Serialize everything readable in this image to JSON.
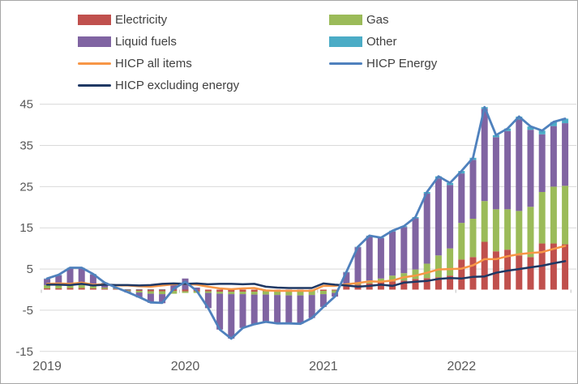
{
  "chart_data": {
    "type": "bar",
    "subtype": "stacked-bars-with-lines",
    "title": "",
    "xlabel": "",
    "ylabel": "",
    "grid": true,
    "legend_position": "top",
    "ylim": [
      -15,
      47
    ],
    "y_ticks": [
      45,
      35,
      25,
      15,
      5,
      -5,
      -15
    ],
    "year_labels": [
      "2019",
      "2020",
      "2021",
      "2022"
    ],
    "year_start_indices": [
      0,
      12,
      24,
      36
    ],
    "months": [
      "2019-01",
      "2019-02",
      "2019-03",
      "2019-04",
      "2019-05",
      "2019-06",
      "2019-07",
      "2019-08",
      "2019-09",
      "2019-10",
      "2019-11",
      "2019-12",
      "2020-01",
      "2020-02",
      "2020-03",
      "2020-04",
      "2020-05",
      "2020-06",
      "2020-07",
      "2020-08",
      "2020-09",
      "2020-10",
      "2020-11",
      "2020-12",
      "2021-01",
      "2021-02",
      "2021-03",
      "2021-04",
      "2021-05",
      "2021-06",
      "2021-07",
      "2021-08",
      "2021-09",
      "2021-10",
      "2021-11",
      "2021-12",
      "2022-01",
      "2022-02",
      "2022-03",
      "2022-04",
      "2022-05",
      "2022-06",
      "2022-07",
      "2022-08",
      "2022-09",
      "2022-10"
    ],
    "bar_series": [
      {
        "name": "Electricity",
        "color": "#C0504D",
        "values": [
          0.3,
          0.3,
          0.4,
          0.4,
          0.3,
          0.2,
          0.1,
          -0.2,
          -0.3,
          -0.4,
          -0.4,
          -0.3,
          -0.4,
          -0.4,
          -0.4,
          -0.5,
          -0.5,
          -0.5,
          -0.5,
          -0.4,
          -0.4,
          -0.4,
          -0.4,
          -0.3,
          -0.3,
          -0.2,
          0.8,
          1.2,
          1.5,
          1.8,
          2.0,
          2.2,
          2.6,
          2.8,
          3.0,
          3.4,
          7.3,
          7.9,
          11.6,
          9.3,
          9.7,
          8.3,
          7.9,
          11.2,
          11.2,
          11.0
        ]
      },
      {
        "name": "Gas",
        "color": "#9BBB59",
        "values": [
          0.8,
          0.9,
          0.8,
          0.7,
          0.5,
          0.3,
          0.1,
          -0.2,
          -0.4,
          -0.6,
          -0.7,
          -0.7,
          -0.4,
          -0.4,
          -0.4,
          -0.5,
          -0.6,
          -0.6,
          -0.7,
          -0.8,
          -0.9,
          -1.0,
          -1.0,
          -1.0,
          -0.8,
          -0.6,
          0.4,
          0.5,
          0.7,
          0.9,
          1.4,
          1.8,
          2.3,
          3.5,
          5.3,
          6.6,
          8.9,
          9.3,
          9.9,
          10.2,
          9.8,
          10.8,
          12.2,
          12.5,
          13.8,
          14.2
        ]
      },
      {
        "name": "Liquid fuels",
        "color": "#8064A2",
        "values": [
          1.5,
          2.3,
          4.0,
          4.1,
          2.9,
          1.1,
          0.2,
          -0.3,
          -1.2,
          -2.2,
          -2.2,
          1.1,
          2.7,
          0.5,
          -3.7,
          -8.7,
          -10.8,
          -8.2,
          -7.2,
          -6.6,
          -6.9,
          -6.8,
          -6.9,
          -5.6,
          -3.1,
          -0.9,
          3.0,
          8.6,
          10.8,
          9.8,
          10.7,
          11.2,
          12.4,
          17.0,
          18.7,
          15.4,
          12.0,
          14.3,
          22.4,
          17.5,
          19.0,
          22.2,
          18.7,
          14.0,
          14.7,
          15.2
        ]
      },
      {
        "name": "Other",
        "color": "#4BACC6",
        "values": [
          0.1,
          0.1,
          0.1,
          0.1,
          0.1,
          0.1,
          0.1,
          0.1,
          0.1,
          0.1,
          0.1,
          0.1,
          0.0,
          0.0,
          0.0,
          0.0,
          0.0,
          0.0,
          0.0,
          0.0,
          0.0,
          0.0,
          0.0,
          0.0,
          0.0,
          0.0,
          0.1,
          0.1,
          0.1,
          0.1,
          0.2,
          0.2,
          0.3,
          0.4,
          0.5,
          0.5,
          0.6,
          0.5,
          0.4,
          0.5,
          0.6,
          0.7,
          0.8,
          0.9,
          1.0,
          1.1
        ]
      }
    ],
    "line_series": [
      {
        "name": "HICP all items",
        "color": "#F79646",
        "values": [
          1.4,
          1.5,
          1.4,
          1.7,
          1.2,
          1.3,
          1.0,
          1.0,
          0.8,
          0.7,
          1.0,
          1.3,
          1.4,
          1.2,
          0.7,
          0.3,
          0.1,
          0.3,
          0.4,
          -0.2,
          -0.3,
          -0.3,
          -0.3,
          -0.3,
          0.9,
          0.9,
          1.3,
          1.6,
          2.0,
          1.9,
          2.2,
          3.0,
          3.4,
          4.1,
          4.9,
          5.0,
          5.1,
          5.9,
          7.4,
          7.4,
          8.1,
          8.6,
          8.9,
          9.1,
          9.9,
          10.6
        ]
      },
      {
        "name": "HICP Energy",
        "color": "#4F81BD",
        "values": [
          2.7,
          3.6,
          5.3,
          5.3,
          3.8,
          1.7,
          0.5,
          -0.6,
          -1.8,
          -3.1,
          -3.2,
          0.2,
          1.9,
          -0.3,
          -4.5,
          -9.7,
          -11.9,
          -9.3,
          -8.4,
          -7.8,
          -8.2,
          -8.2,
          -8.3,
          -6.9,
          -4.2,
          -1.7,
          4.3,
          10.4,
          13.1,
          12.6,
          14.3,
          15.4,
          17.6,
          23.7,
          27.5,
          25.9,
          28.8,
          32.0,
          44.3,
          37.5,
          39.1,
          42.0,
          39.6,
          38.6,
          40.7,
          41.5
        ]
      },
      {
        "name": "HICP excluding energy",
        "color": "#1F3864",
        "values": [
          1.2,
          1.2,
          1.1,
          1.4,
          1.0,
          1.2,
          1.1,
          1.1,
          1.0,
          1.1,
          1.4,
          1.5,
          1.4,
          1.5,
          1.3,
          1.4,
          1.4,
          1.3,
          1.4,
          0.7,
          0.5,
          0.4,
          0.4,
          0.4,
          1.5,
          1.2,
          1.0,
          0.7,
          0.9,
          1.2,
          0.9,
          1.7,
          1.9,
          2.1,
          2.6,
          2.8,
          2.7,
          3.1,
          3.2,
          4.1,
          4.6,
          5.0,
          5.4,
          5.8,
          6.4,
          6.9
        ]
      }
    ],
    "style": {
      "gridline_color": "#D9D9D9",
      "axis_text_color": "#595959",
      "tick_color": "#BFBFBF",
      "border_color": "#A6A6A6"
    }
  }
}
